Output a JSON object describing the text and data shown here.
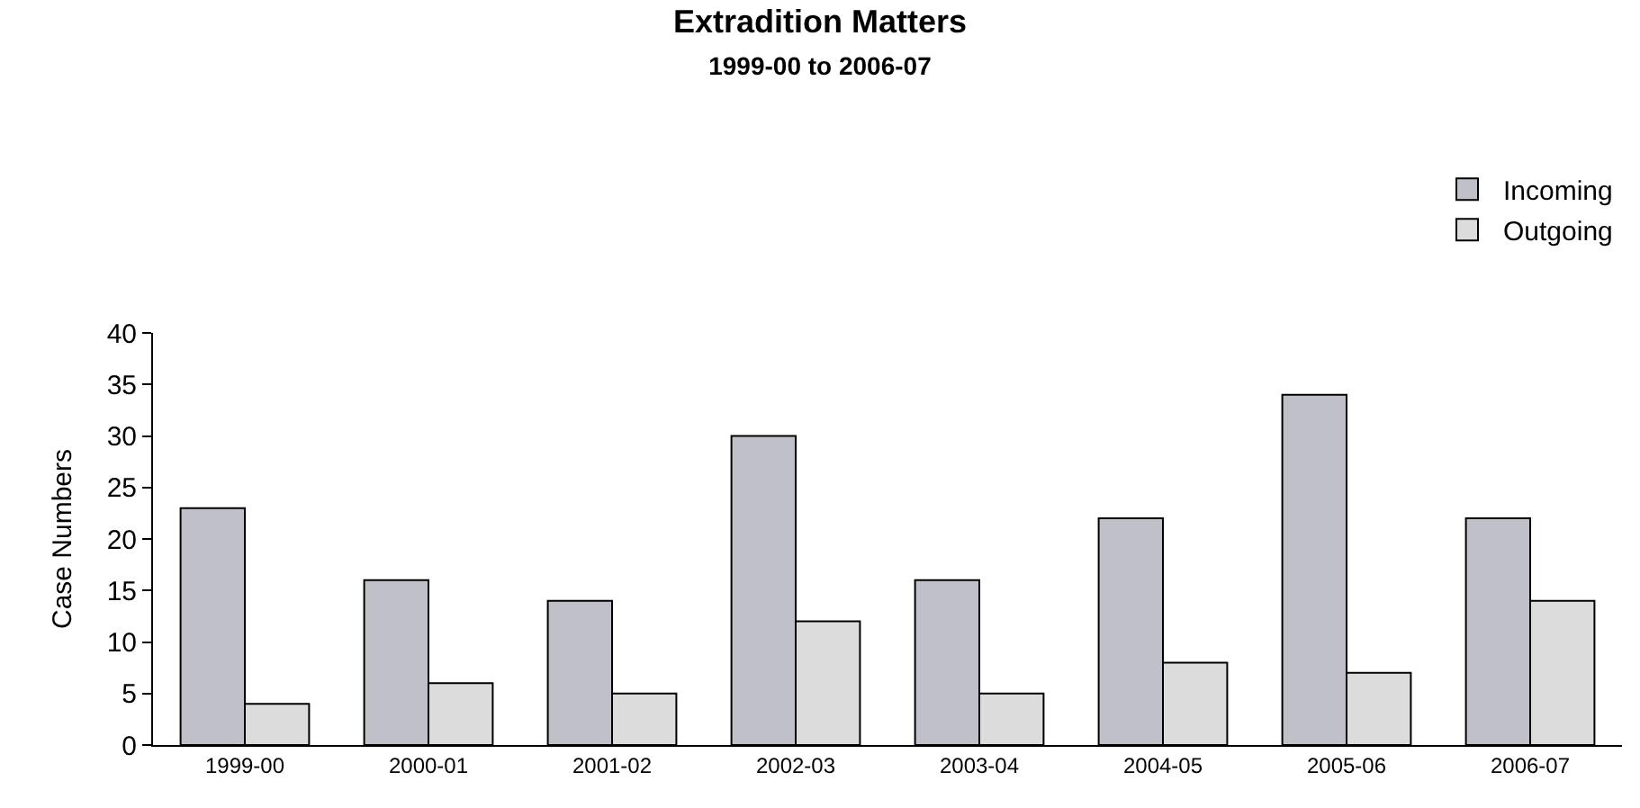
{
  "chart_data": {
    "type": "bar",
    "title": "Extradition Matters",
    "subtitle": "1999-00 to 2006-07",
    "ylabel": "Case Numbers",
    "categories": [
      "1999-00",
      "2000-01",
      "2001-02",
      "2002-03",
      "2003-04",
      "2004-05",
      "2005-06",
      "2006-07"
    ],
    "series": [
      {
        "name": "Incoming",
        "color": "#c0c0c8",
        "values": [
          23,
          16,
          14,
          30,
          16,
          22,
          34,
          22
        ]
      },
      {
        "name": "Outgoing",
        "color": "#dcdcdc",
        "values": [
          4,
          6,
          5,
          12,
          5,
          8,
          7,
          14
        ]
      }
    ],
    "ylim": [
      0,
      40
    ],
    "yticks": [
      0,
      5,
      10,
      15,
      20,
      25,
      30,
      35,
      40
    ],
    "grid": false,
    "legend": "top right"
  }
}
